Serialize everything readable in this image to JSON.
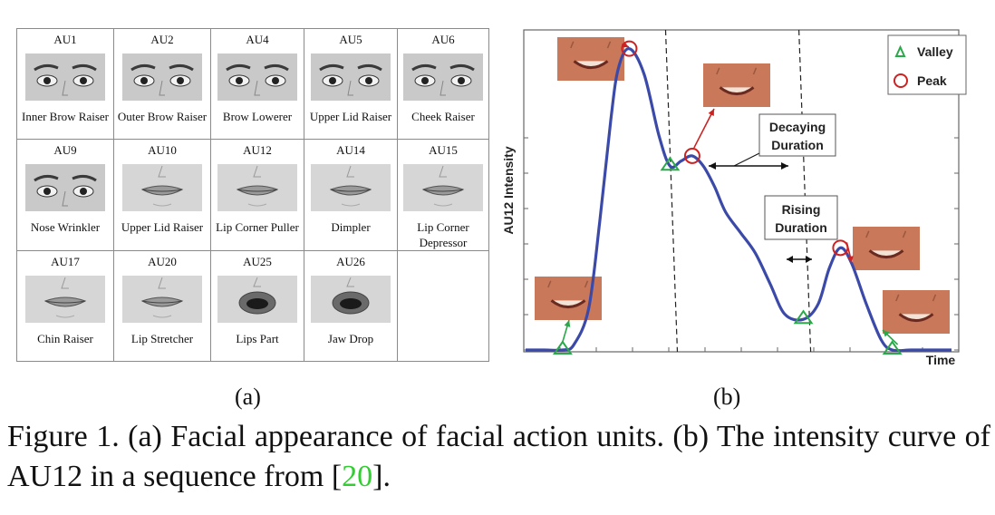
{
  "panel_a": {
    "rows": [
      [
        {
          "code": "AU1",
          "name": "Inner Brow Raiser",
          "face": "eyes"
        },
        {
          "code": "AU2",
          "name": "Outer Brow Raiser",
          "face": "eyes"
        },
        {
          "code": "AU4",
          "name": "Brow Lowerer",
          "face": "eyes"
        },
        {
          "code": "AU5",
          "name": "Upper Lid Raiser",
          "face": "eyes"
        },
        {
          "code": "AU6",
          "name": "Cheek Raiser",
          "face": "eyes"
        }
      ],
      [
        {
          "code": "AU9",
          "name": "Nose Wrinkler",
          "face": "eyes"
        },
        {
          "code": "AU10",
          "name": "Upper Lid Raiser",
          "face": "mouth"
        },
        {
          "code": "AU12",
          "name": "Lip Corner Puller",
          "face": "mouth"
        },
        {
          "code": "AU14",
          "name": "Dimpler",
          "face": "mouth"
        },
        {
          "code": "AU15",
          "name": "Lip Corner Depressor",
          "face": "mouth"
        }
      ],
      [
        {
          "code": "AU17",
          "name": "Chin Raiser",
          "face": "mouth"
        },
        {
          "code": "AU20",
          "name": "Lip Stretcher",
          "face": "mouth"
        },
        {
          "code": "AU25",
          "name": "Lips Part",
          "face": "mouth-open"
        },
        {
          "code": "AU26",
          "name": "Jaw Drop",
          "face": "mouth-open"
        },
        {
          "code": "",
          "name": "",
          "face": ""
        }
      ]
    ],
    "label": "(a)"
  },
  "panel_b": {
    "label": "(b)",
    "annotations": {
      "decaying": [
        "Decaying",
        "Duration"
      ],
      "rising": [
        "Rising",
        "Duration"
      ]
    },
    "colors": {
      "curve": "#3b4aa8",
      "valley": "#2aa84a",
      "peak": "#cc2222",
      "skin": "#c9785a"
    }
  },
  "chart_data": {
    "type": "line",
    "title": "",
    "xlabel": "Time",
    "ylabel": "AU12 Intensity",
    "ylim": [
      0,
      6
    ],
    "grid": false,
    "legend": {
      "placement": "top-right",
      "entries": [
        {
          "name": "Valley",
          "marker": "triangle"
        },
        {
          "name": "Peak",
          "marker": "circle"
        }
      ]
    },
    "x": [
      0,
      0.5,
      1,
      1.3,
      1.7,
      2,
      2.3,
      2.5,
      2.8,
      3.2,
      3.6,
      3.9,
      4.2,
      4.5,
      4.8,
      5.1,
      5.4,
      5.8,
      6.2,
      6.6,
      7.0,
      7.5,
      7.9,
      8.2,
      8.5,
      8.8,
      9.2,
      9.6,
      9.9,
      10.4,
      11,
      11.5
    ],
    "y": [
      0,
      0,
      0,
      0.1,
      0.8,
      2.5,
      4.5,
      5.5,
      5.9,
      5.4,
      4.2,
      3.6,
      3.7,
      3.8,
      3.6,
      3.2,
      2.7,
      2.3,
      1.9,
      1.3,
      0.7,
      0.6,
      0.9,
      1.6,
      2.0,
      1.7,
      0.9,
      0.2,
      0,
      0,
      0,
      0
    ],
    "valleys": [
      [
        1.0,
        0
      ],
      [
        3.9,
        3.6
      ],
      [
        7.5,
        0.6
      ],
      [
        9.9,
        0
      ]
    ],
    "peaks": [
      [
        2.8,
        5.9
      ],
      [
        4.5,
        3.8
      ],
      [
        8.5,
        2.0
      ]
    ],
    "dashed_lines_x": [
      4.0,
      7.6
    ]
  },
  "caption": {
    "text": "Figure 1. (a) Facial appearance of facial action units. (b) The intensity curve of AU12 in a sequence from [",
    "cite": "20",
    "end": "]."
  }
}
